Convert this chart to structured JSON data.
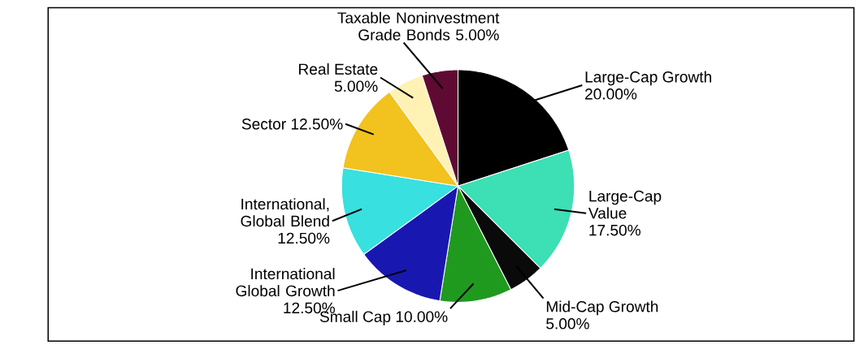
{
  "chart_data": {
    "type": "pie",
    "categories": [
      "Large-Cap Growth",
      "Large-Cap Value",
      "Mid-Cap Growth",
      "Small Cap",
      "International Global Growth",
      "International, Global Blend",
      "Sector",
      "Real Estate",
      "Taxable Noninvestment Grade Bonds"
    ],
    "values": [
      20,
      17.5,
      5,
      10,
      12.5,
      12.5,
      12.5,
      5,
      5
    ],
    "value_labels": [
      "20.00%",
      "17.50%",
      "5.00%",
      "10.00%",
      "12.50%",
      "12.50%",
      "12.50%",
      "5.00%",
      "5.00%"
    ],
    "colors": [
      "#000000",
      "#3ce0b4",
      "#0a0a0a",
      "#1f9a1f",
      "#1818b0",
      "#38e0e0",
      "#f2c21e",
      "#fff2b4",
      "#5e0a32"
    ]
  }
}
